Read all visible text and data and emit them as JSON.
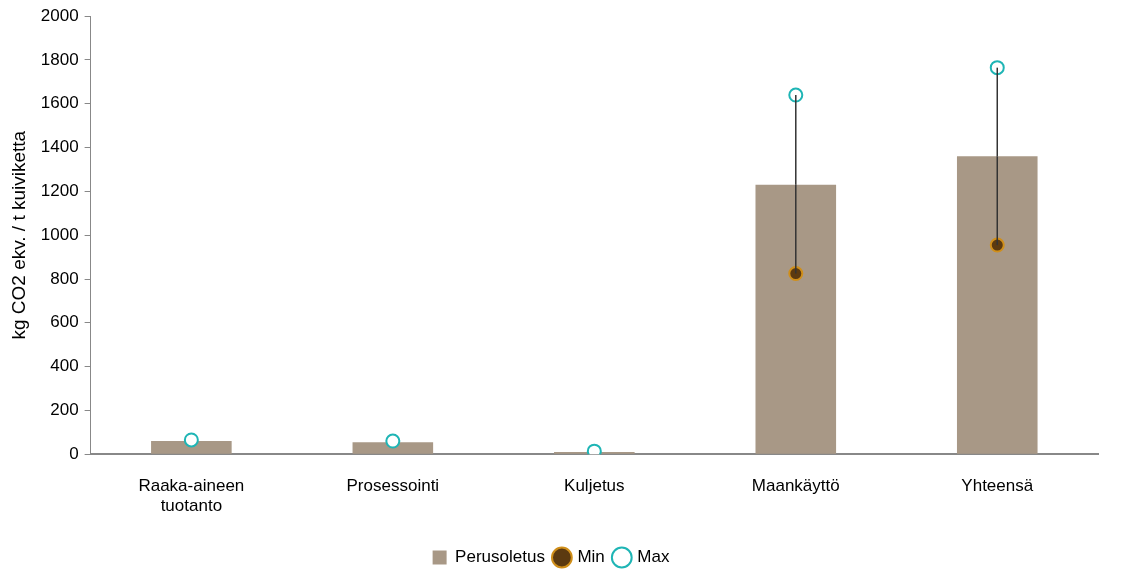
{
  "chart_data": {
    "type": "bar",
    "ylabel": "kg CO2 ekv. / t kuiviketta",
    "categories": [
      "Raaka-aineen tuotanto",
      "Prosessointi",
      "Kuljetus",
      "Maankäyttö",
      "Yhteensä"
    ],
    "series": [
      {
        "name": "Perusoletus",
        "color": "#a89886",
        "values": [
          60,
          55,
          10,
          1230,
          1360
        ],
        "errors": [
          null,
          null,
          null,
          [
            825,
            1640
          ],
          [
            955,
            1765
          ]
        ]
      },
      {
        "name": "Min",
        "type": "scatter",
        "color": "#5c3a10",
        "values": [
          null,
          null,
          null,
          825,
          955
        ]
      },
      {
        "name": "Max",
        "type": "scatter",
        "color": "#1fb5b5",
        "values": [
          65,
          60,
          14,
          1640,
          1765
        ]
      }
    ],
    "ylim": [
      0,
      2000
    ],
    "yticks": [
      0,
      200,
      400,
      600,
      800,
      1000,
      1200,
      1400,
      1600,
      1800,
      2000
    ],
    "grid": false,
    "legend": "bottom",
    "marker": "circle"
  }
}
